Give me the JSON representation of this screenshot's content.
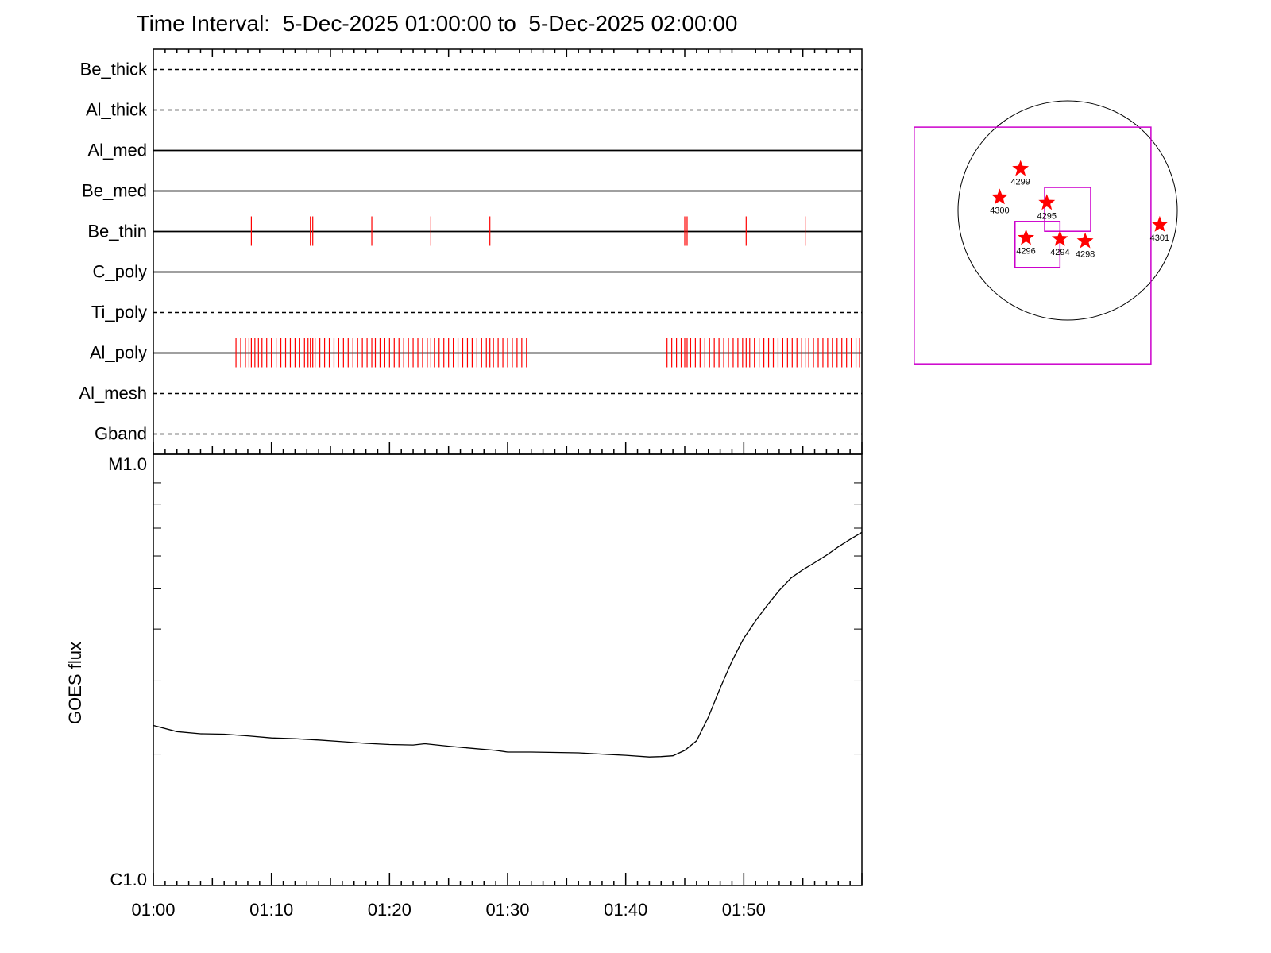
{
  "title": "Time Interval:  5-Dec-2025 01:00:00 to  5-Dec-2025 02:00:00",
  "chart_data": [
    {
      "type": "timeline",
      "x_range_minutes": [
        0,
        60
      ],
      "channels": [
        {
          "name": "Be_thick",
          "style": "dashed",
          "events": []
        },
        {
          "name": "Al_thick",
          "style": "dashed",
          "events": []
        },
        {
          "name": "Al_med",
          "style": "solid",
          "events": []
        },
        {
          "name": "Be_med",
          "style": "solid",
          "events": []
        },
        {
          "name": "Be_thin",
          "style": "solid",
          "events": [
            8.3,
            13.3,
            13.5,
            18.5,
            23.5,
            28.5,
            45.0,
            45.2,
            50.2,
            55.2
          ]
        },
        {
          "name": "C_poly",
          "style": "solid",
          "events": []
        },
        {
          "name": "Ti_poly",
          "style": "dashed",
          "events": []
        },
        {
          "name": "Al_poly",
          "style": "solid",
          "events": [
            7.0,
            7.4,
            7.8,
            8.1,
            8.3,
            8.6,
            8.9,
            9.2,
            9.6,
            10.0,
            10.4,
            10.8,
            11.2,
            11.6,
            12.0,
            12.4,
            12.8,
            13.1,
            13.3,
            13.5,
            13.7,
            14.1,
            14.5,
            14.9,
            15.3,
            15.7,
            16.1,
            16.5,
            16.9,
            17.3,
            17.7,
            18.1,
            18.5,
            18.8,
            19.2,
            19.6,
            20.0,
            20.4,
            20.8,
            21.2,
            21.6,
            22.0,
            22.4,
            22.8,
            23.2,
            23.5,
            23.8,
            24.2,
            24.6,
            25.0,
            25.4,
            25.8,
            26.2,
            26.6,
            27.0,
            27.4,
            27.8,
            28.2,
            28.5,
            28.8,
            29.2,
            29.6,
            30.0,
            30.4,
            30.8,
            31.2,
            31.6,
            43.5,
            43.9,
            44.3,
            44.7,
            45.0,
            45.2,
            45.5,
            45.9,
            46.3,
            46.7,
            47.1,
            47.5,
            47.9,
            48.3,
            48.7,
            49.1,
            49.5,
            49.9,
            50.2,
            50.5,
            50.9,
            51.3,
            51.7,
            52.1,
            52.5,
            52.9,
            53.3,
            53.7,
            54.1,
            54.5,
            54.9,
            55.2,
            55.5,
            55.9,
            56.3,
            56.7,
            57.1,
            57.5,
            57.9,
            58.3,
            58.7,
            59.1,
            59.5,
            59.8
          ]
        },
        {
          "name": "Al_mesh",
          "style": "dashed",
          "events": []
        },
        {
          "name": "Gband",
          "style": "dashed",
          "events": []
        }
      ]
    },
    {
      "type": "line",
      "ylabel": "GOES flux",
      "y_ticks": [
        "M1.0",
        "C1.0"
      ],
      "x_tick_labels": [
        "01:00",
        "01:10",
        "01:20",
        "01:30",
        "01:40",
        "01:50"
      ],
      "x_ticks_minutes": [
        0,
        10,
        20,
        30,
        40,
        50
      ],
      "y_scale": "log",
      "y_range_log10": [
        -6,
        -5
      ],
      "series": [
        {
          "x": [
            0,
            2,
            4,
            6,
            8,
            10,
            12,
            14,
            16,
            18,
            20,
            22,
            23,
            25,
            27,
            29,
            30,
            32,
            34,
            36,
            38,
            40,
            42,
            43,
            44,
            45,
            46,
            47,
            48,
            49,
            50,
            51,
            52,
            53,
            54,
            55,
            56,
            57,
            58,
            59,
            60
          ],
          "log10_flux": [
            -5.63,
            -5.645,
            -5.65,
            -5.651,
            -5.655,
            -5.66,
            -5.662,
            -5.665,
            -5.669,
            -5.673,
            -5.676,
            -5.677,
            -5.674,
            -5.68,
            -5.685,
            -5.69,
            -5.694,
            -5.694,
            -5.695,
            -5.696,
            -5.699,
            -5.702,
            -5.706,
            -5.705,
            -5.703,
            -5.69,
            -5.667,
            -5.61,
            -5.54,
            -5.475,
            -5.42,
            -5.378,
            -5.34,
            -5.305,
            -5.275,
            -5.255,
            -5.238,
            -5.22,
            -5.2,
            -5.182,
            -5.165
          ]
        }
      ]
    },
    {
      "type": "scatter",
      "title": "",
      "regions": [
        {
          "label": "4299",
          "x": -0.43,
          "y": 0.38
        },
        {
          "label": "4300",
          "x": -0.62,
          "y": 0.12
        },
        {
          "label": "4295",
          "x": -0.19,
          "y": 0.07
        },
        {
          "label": "4301",
          "x": 0.84,
          "y": -0.13
        },
        {
          "label": "4296",
          "x": -0.38,
          "y": -0.25
        },
        {
          "label": "4294",
          "x": -0.07,
          "y": -0.26
        },
        {
          "label": "4298",
          "x": 0.16,
          "y": -0.28
        }
      ],
      "fov_boxes": [
        {
          "x": [
            -1.4,
            0.76
          ],
          "y": [
            -1.4,
            0.76
          ]
        },
        {
          "x": [
            -0.21,
            0.21
          ],
          "y": [
            -0.19,
            0.21
          ]
        },
        {
          "x": [
            -0.48,
            -0.07
          ],
          "y": [
            -0.52,
            -0.1
          ]
        }
      ],
      "disk_radius": 1.0,
      "marker_color": "#ff0000",
      "box_color": "#cc00cc"
    }
  ]
}
